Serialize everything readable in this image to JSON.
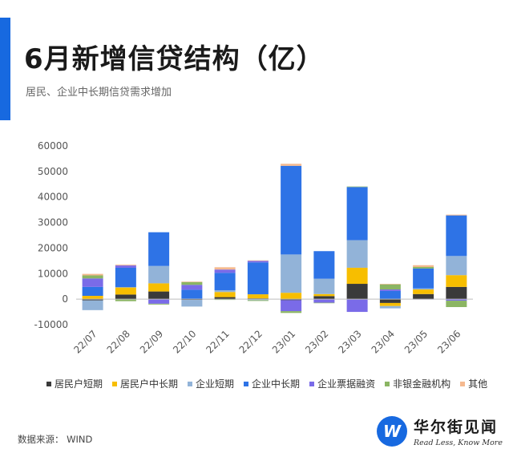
{
  "header": {
    "title": "6月新增信贷结构（亿）",
    "subtitle": "居民、企业中长期信贷需求增加"
  },
  "footer": {
    "source": "数据来源：  WIND",
    "logo_cn": "华尔街见闻",
    "logo_en": "Read Less, Know More",
    "logo_mark": "W"
  },
  "colors": {
    "accent": "#1769e0"
  },
  "chart_data": {
    "type": "bar",
    "stacked": true,
    "categories": [
      "22/07",
      "22/08",
      "22/09",
      "22/10",
      "22/11",
      "22/12",
      "23/01",
      "23/02",
      "23/03",
      "23/04",
      "23/05",
      "23/06"
    ],
    "ylim": [
      -10000,
      60000
    ],
    "yticks": [
      -10000,
      0,
      10000,
      20000,
      30000,
      40000,
      50000,
      60000
    ],
    "grid": false,
    "legend_position": "bottom",
    "series": [
      {
        "name": "居民户短期",
        "color": "#3a3a3a",
        "values": [
          -500,
          1800,
          3000,
          -300,
          800,
          300,
          -400,
          1200,
          6000,
          -1500,
          2000,
          4800
        ]
      },
      {
        "name": "居民户中长期",
        "color": "#f7be00",
        "values": [
          1300,
          2800,
          3200,
          100,
          2000,
          1600,
          2500,
          800,
          6300,
          -1200,
          1800,
          4600
        ]
      },
      {
        "name": "企业短期",
        "color": "#92b3d8",
        "values": [
          -3800,
          100,
          6800,
          -2600,
          700,
          -400,
          15000,
          6000,
          10800,
          -900,
          400,
          7500
        ]
      },
      {
        "name": "企业中长期",
        "color": "#2e73e6",
        "values": [
          3500,
          7600,
          13200,
          3600,
          6800,
          12500,
          34700,
          10800,
          20800,
          3200,
          7800,
          15900
        ]
      },
      {
        "name": "企业票据融资",
        "color": "#7a6be8",
        "values": [
          3300,
          900,
          -1800,
          1900,
          1300,
          600,
          -4300,
          -1400,
          -5000,
          600,
          -100,
          -600
        ]
      },
      {
        "name": "非银金融机构",
        "color": "#8bb563",
        "values": [
          1200,
          -800,
          -300,
          1100,
          -300,
          -300,
          -700,
          -200,
          200,
          2000,
          600,
          -2500
        ]
      },
      {
        "name": "其他",
        "color": "#f5b98f",
        "values": [
          600,
          300,
          0,
          200,
          900,
          200,
          800,
          0,
          0,
          200,
          700,
          300
        ]
      }
    ]
  }
}
